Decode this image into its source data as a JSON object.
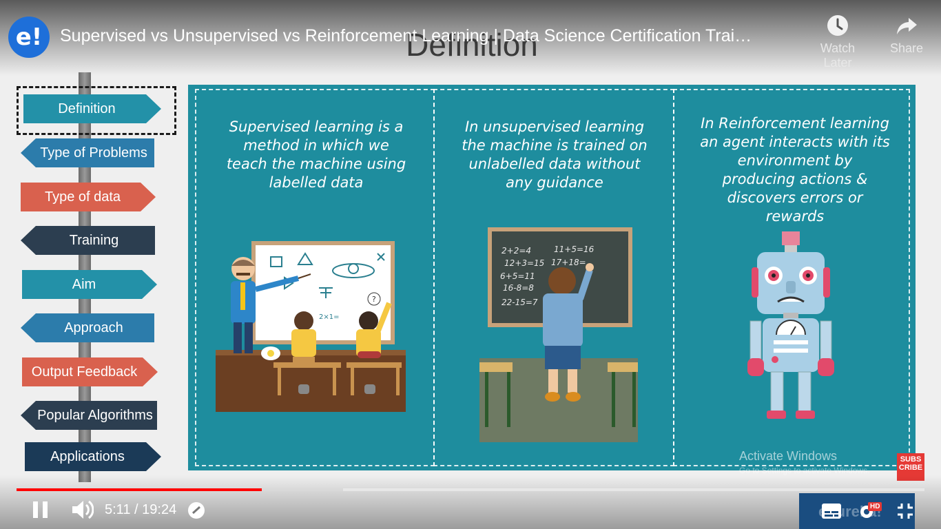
{
  "video": {
    "channel_logo": "e!",
    "title": "Supervised vs Unsupervised vs Reinforcement Learning | Data Science Certification Trai…",
    "watch_later": "Watch Later",
    "share": "Share"
  },
  "slide": {
    "heading": "Definition",
    "signs": [
      {
        "label": "Definition",
        "color": "#2391a8"
      },
      {
        "label": "Type of Problems",
        "color": "#2c7cab"
      },
      {
        "label": "Type of data",
        "color": "#d9614e"
      },
      {
        "label": "Training",
        "color": "#2c3e50"
      },
      {
        "label": "Aim",
        "color": "#2391a8"
      },
      {
        "label": "Approach",
        "color": "#2c7cab"
      },
      {
        "label": "Output Feedback",
        "color": "#d9614e"
      },
      {
        "label": "Popular Algorithms",
        "color": "#2c3e50"
      },
      {
        "label": "Applications",
        "color": "#1b3a57"
      }
    ],
    "columns": [
      {
        "text": "Supervised learning is a method in which we teach the machine using labelled data"
      },
      {
        "text": "In unsupervised learning the machine is trained on unlabelled data without any guidance"
      },
      {
        "text": "In Reinforcement learning an agent interacts with its environment by producing actions & discovers errors or rewards"
      }
    ],
    "chalkboard_lines": [
      "2+2=4",
      "11+5=16",
      "12+3=15",
      "17+18=",
      "6+5=11",
      "16-8=8",
      "22-15=7"
    ],
    "whiteboard_text": "2×1=",
    "panel_color": "#1e8d9e"
  },
  "watermark": {
    "activate": "Activate Windows",
    "activate_sub": "Go to Settings to activate Windows.",
    "subscribe": "SUBS CRIBE"
  },
  "player": {
    "current_time": "5:11",
    "separator": "/",
    "duration": "19:24",
    "progress_played_fraction": 0.27,
    "progress_buffered_fraction": 0.36,
    "hd_badge": "HD",
    "brand_text": "edureka!"
  }
}
